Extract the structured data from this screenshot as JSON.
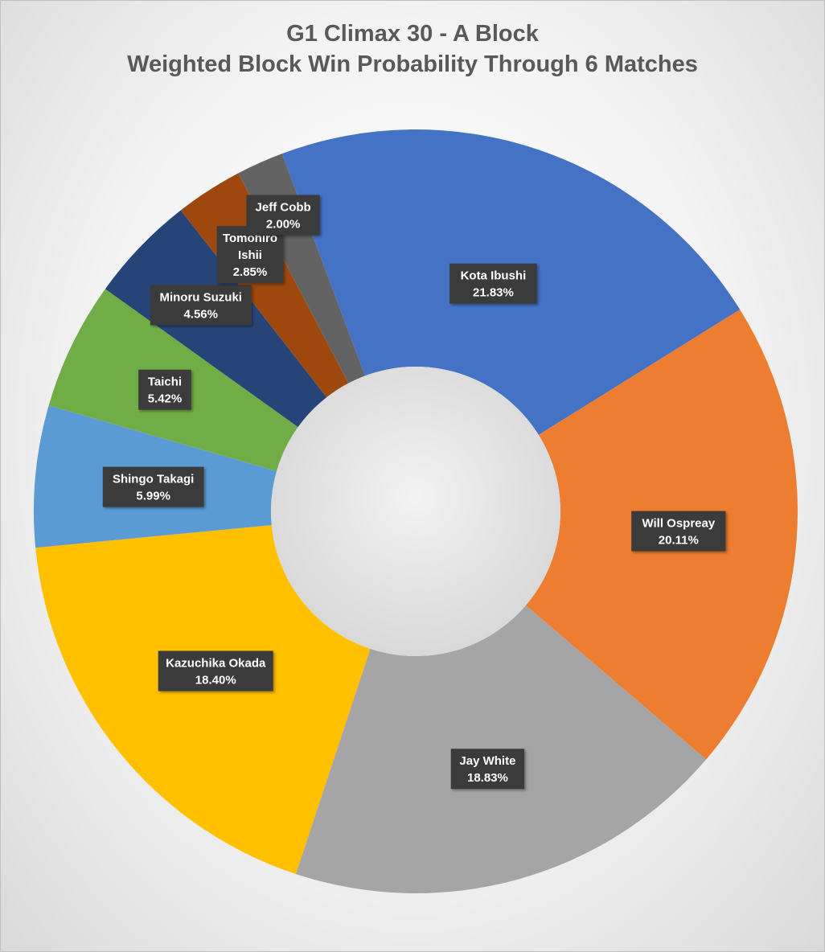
{
  "chart_data": {
    "type": "pie",
    "variant": "doughnut",
    "title": "G1 Climax 30 - A Block",
    "subtitle": "Weighted Block Win Probability Through 6 Matches",
    "legend": "none",
    "data_labels": "inside, category name and percentage",
    "slices": [
      {
        "label": "Kota Ibushi",
        "value": 21.83,
        "display": "21.83%",
        "color": "#4472C4"
      },
      {
        "label": "Will Ospreay",
        "value": 20.11,
        "display": "20.11%",
        "color": "#ED7D31"
      },
      {
        "label": "Jay White",
        "value": 18.83,
        "display": "18.83%",
        "color": "#A5A5A5"
      },
      {
        "label": "Kazuchika Okada",
        "value": 18.4,
        "display": "18.40%",
        "color": "#FFC000"
      },
      {
        "label": "Shingo Takagi",
        "value": 5.99,
        "display": "5.99%",
        "color": "#5B9BD5"
      },
      {
        "label": "Taichi",
        "value": 5.42,
        "display": "5.42%",
        "color": "#70AD47"
      },
      {
        "label": "Minoru Suzuki",
        "value": 4.56,
        "display": "4.56%",
        "color": "#264478"
      },
      {
        "label": "Tomohiro Ishii",
        "label_lines": [
          "Tomohiro",
          "Ishii"
        ],
        "value": 2.85,
        "display": "2.85%",
        "color": "#9E480E"
      },
      {
        "label": "Jeff Cobb",
        "value": 2.0,
        "display": "2.00%",
        "color": "#636363"
      }
    ]
  }
}
